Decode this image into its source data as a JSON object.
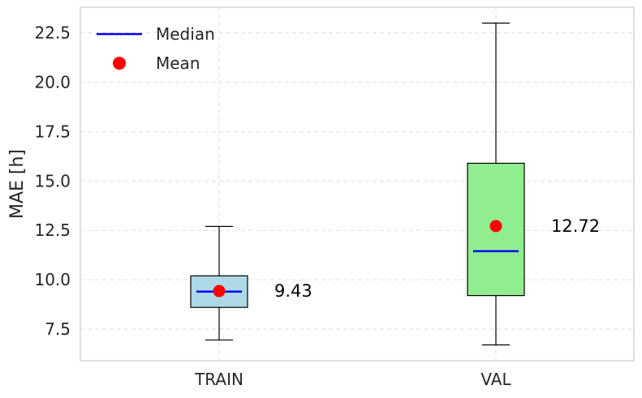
{
  "chart_data": {
    "type": "box",
    "title": "",
    "xlabel": "",
    "ylabel": "MAE [h]",
    "ylim": [
      5.9,
      23.8
    ],
    "yticks": [
      "7.5",
      "10.0",
      "12.5",
      "15.0",
      "17.5",
      "20.0",
      "22.5"
    ],
    "grid": true,
    "legend_position": "top-left",
    "legend": [
      {
        "label": "Median",
        "marker": "line",
        "color": "#0000ee"
      },
      {
        "label": "Mean",
        "marker": "dot",
        "color": "#ff0000"
      }
    ],
    "categories": [
      "TRAIN",
      "VAL"
    ],
    "boxes": [
      {
        "name": "TRAIN",
        "whisker_low": 6.95,
        "q1": 8.6,
        "median": 9.4,
        "q3": 10.2,
        "whisker_high": 12.7,
        "mean": 9.43,
        "mean_label": "9.43",
        "fill": "#add8e6"
      },
      {
        "name": "VAL",
        "whisker_low": 6.7,
        "q1": 9.2,
        "median": 11.45,
        "q3": 15.9,
        "whisker_high": 23.0,
        "mean": 12.72,
        "mean_label": "12.72",
        "fill": "#90ee90"
      }
    ]
  }
}
